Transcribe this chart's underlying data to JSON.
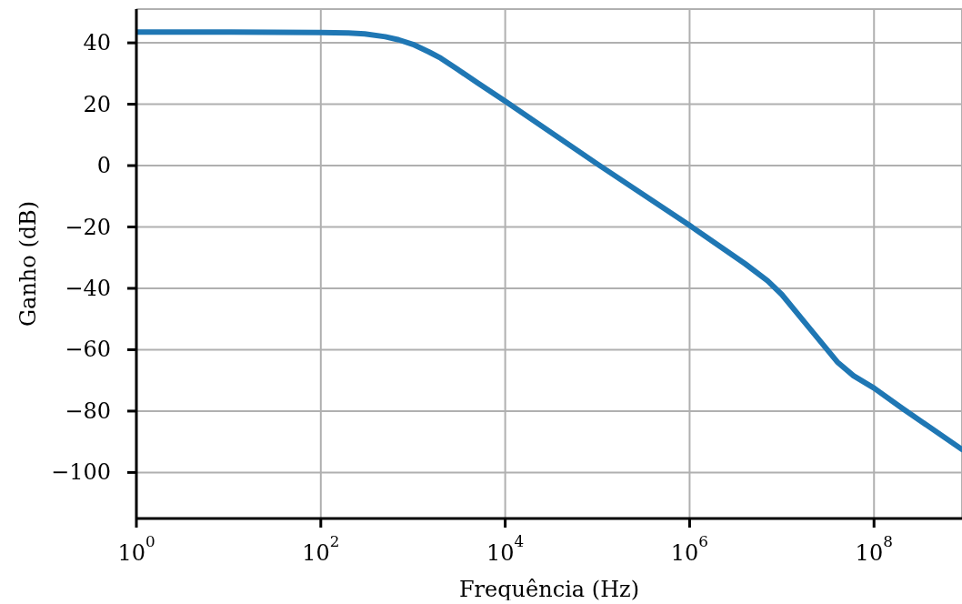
{
  "chart_data": {
    "type": "line",
    "xlabel": "Frequência (Hz)",
    "ylabel": "Ganho (dB)",
    "log": "x",
    "grid": true,
    "marker": "none",
    "line_style": "solid",
    "xlim": [
      1,
      900000000
    ],
    "ylim": [
      -115,
      51
    ],
    "xticks": [
      {
        "value": 1,
        "label": "10$^{0}$"
      },
      {
        "value": 100,
        "label": "10$^{2}$"
      },
      {
        "value": 10000,
        "label": "10$^{4}$"
      },
      {
        "value": 1000000,
        "label": "10$^{6}$"
      },
      {
        "value": 100000000,
        "label": "10$^{8}$"
      }
    ],
    "yticks": [
      40,
      20,
      0,
      {
        "value": -20,
        "label": "−20"
      },
      {
        "value": -40,
        "label": "−40"
      },
      {
        "value": -60,
        "label": "−60"
      },
      {
        "value": -80,
        "label": "−80"
      },
      {
        "value": -100,
        "label": "−100"
      }
    ],
    "x": [
      1,
      10,
      100,
      200,
      300,
      500,
      700,
      1000,
      1500,
      2000,
      3000,
      5000,
      10000,
      100000,
      1000000,
      4000000,
      7000000,
      10000000,
      20000000,
      40000000,
      60000000,
      100000000,
      200000000,
      900000000
    ],
    "series": [
      {
        "color": "#1f77b4",
        "values": [
          43.5,
          43.5,
          43.4,
          43.2,
          42.9,
          42,
          41,
          39.5,
          37,
          35,
          31.5,
          27,
          21,
          0.5,
          -19.5,
          -32,
          -37.5,
          -42,
          -53,
          -64,
          -68.5,
          -72.5,
          -79,
          -92.5
        ]
      }
    ]
  }
}
